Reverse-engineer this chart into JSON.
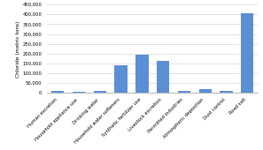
{
  "categories": [
    "Human excretion",
    "Household appliance use",
    "Drinking water",
    "Household water softeners",
    "Synthetic fertilizer use",
    "Livestock excretion",
    "Permitted industries",
    "Atmospheric deposition",
    "Dust control",
    "Road salt"
  ],
  "values": [
    10000,
    8000,
    12000,
    140000,
    195000,
    165000,
    12000,
    18000,
    10000,
    405000
  ],
  "bar_color": "#5b8fd4",
  "ylabel": "Chloride (metric tons)",
  "ylim": [
    0,
    450000
  ],
  "yticks": [
    0,
    50000,
    100000,
    150000,
    200000,
    250000,
    300000,
    350000,
    400000,
    450000
  ],
  "background_color": "#ffffff",
  "grid_color": "#cccccc"
}
